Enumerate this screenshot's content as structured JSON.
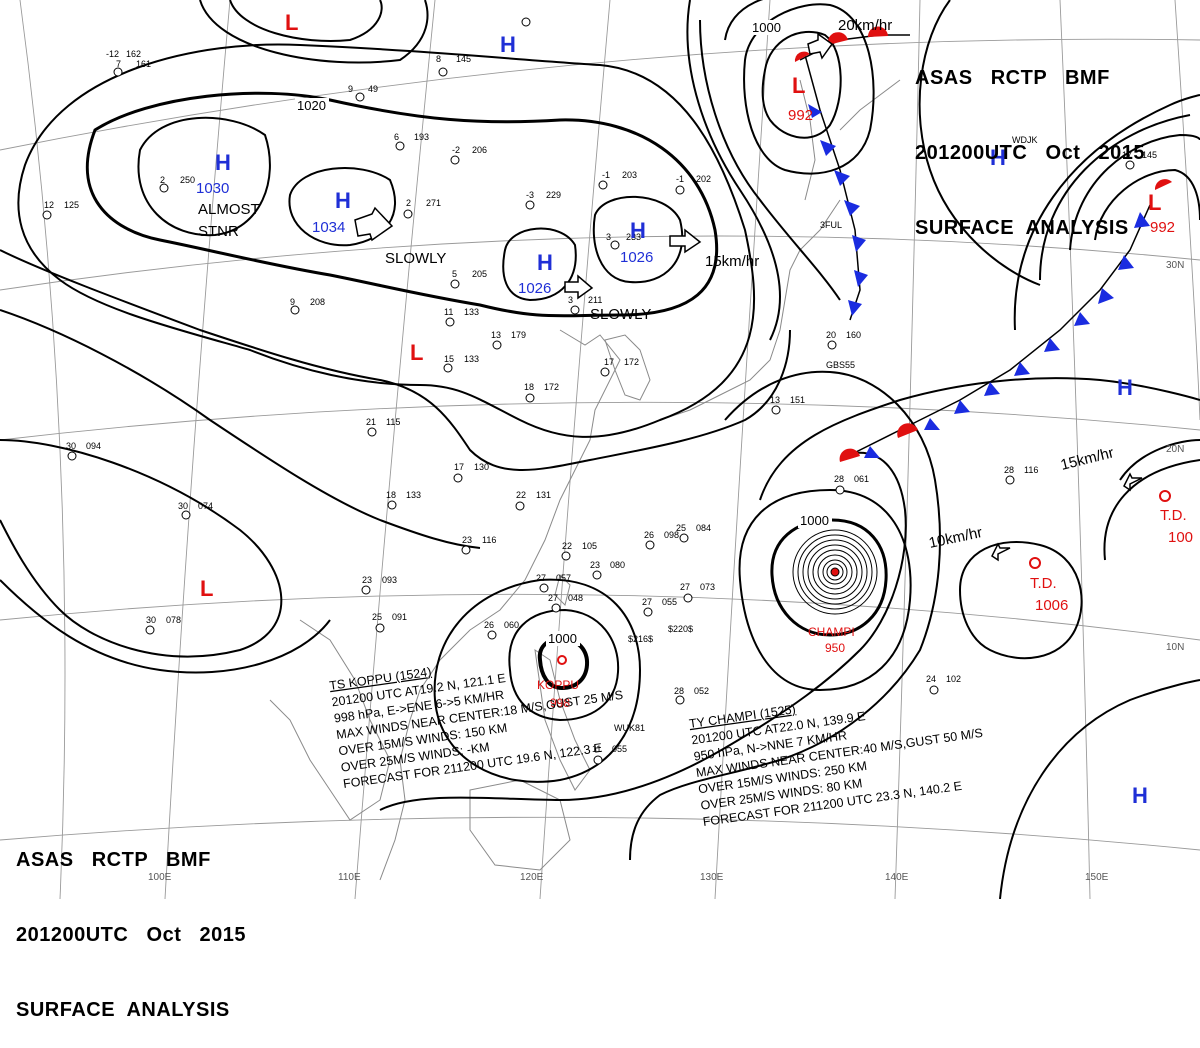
{
  "header": {
    "line1": "ASAS   RCTP   BMF",
    "line2": "201200UTC   Oct   2015",
    "line3": "SURFACE  ANALYSIS"
  },
  "footer": {
    "line1": "ASAS   RCTP   BMF",
    "line2": "201200UTC   Oct   2015",
    "line3": "SURFACE  ANALYSIS"
  },
  "colors": {
    "high": "#1f2fd6",
    "low": "#e01010",
    "cold_front": "#1a2ce0",
    "warm_front": "#e01010",
    "isobar": "#000000",
    "grid": "#9a9a9a",
    "coast": "#8a8a8a"
  },
  "longitude_labels": [
    "100E",
    "110E",
    "120E",
    "130E",
    "140E",
    "150E"
  ],
  "latitude_labels": [
    "30N",
    "20N",
    "10N"
  ],
  "isobar_labels": [
    "1020",
    "1000",
    "1000",
    "1000"
  ],
  "pressure_systems": [
    {
      "type": "H",
      "value": "1030"
    },
    {
      "type": "H",
      "value": "1034"
    },
    {
      "type": "H",
      "value": "1026"
    },
    {
      "type": "H",
      "value": "1026"
    },
    {
      "type": "H",
      "value": ""
    },
    {
      "type": "H",
      "value": ""
    },
    {
      "type": "H",
      "value": ""
    },
    {
      "type": "H",
      "value": ""
    },
    {
      "type": "L",
      "value": "992"
    },
    {
      "type": "L",
      "value": "992"
    },
    {
      "type": "L",
      "value": ""
    },
    {
      "type": "L",
      "value": ""
    },
    {
      "type": "L",
      "value": ""
    }
  ],
  "motion_labels": [
    "ALMOST",
    "STNR",
    "SLOWLY",
    "SLOWLY",
    "15km/hr",
    "20km/hr",
    "15km/hr",
    "10km/hr"
  ],
  "tropical_systems": [
    {
      "name": "CHAMPI",
      "pressure": "950"
    },
    {
      "name": "KOPPU",
      "pressure": "998"
    },
    {
      "name": "T.D.",
      "pressure": "1006"
    },
    {
      "name": "T.D.",
      "pressure": "100"
    }
  ],
  "koppu_bulletin": [
    "TS  KOPPU  (1524)",
    "201200 UTC  AT19.2 N, 121.1 E",
    "998 hPa, E->ENE  6->5 KM/HR",
    "MAX WINDS NEAR CENTER:18 M/S,GUST 25 M/S",
    "OVER 15M/S WINDS: 150 KM",
    "OVER 25M/S WINDS: -KM",
    "FORECAST FOR 211200 UTC 19.6 N, 122.3 E"
  ],
  "champi_bulletin": [
    "TY  CHAMPI  (1525)",
    "201200 UTC  AT22.0 N, 139.9 E",
    "950 hPa, N->NNE  7 KM/HR",
    "MAX WINDS NEAR CENTER:40 M/S,GUST 50 M/S",
    "OVER 15M/S WINDS: 250 KM",
    "OVER 25M/S WINDS: 80 KM",
    "FORECAST FOR 211200 UTC 23.3 N, 140.2 E"
  ],
  "station_plots": [
    {
      "temp": "-12",
      "pressure": "162"
    },
    {
      "temp": "7",
      "pressure": "161"
    },
    {
      "temp": "8",
      "pressure": "145"
    },
    {
      "temp": "9",
      "pressure": "49"
    },
    {
      "temp": "6",
      "pressure": "193"
    },
    {
      "temp": "-2",
      "pressure": "206"
    },
    {
      "temp": "-3",
      "pressure": "229"
    },
    {
      "temp": "-1",
      "pressure": "203"
    },
    {
      "temp": "-1",
      "pressure": "202"
    },
    {
      "temp": "2",
      "pressure": "271"
    },
    {
      "temp": "2",
      "pressure": "250"
    },
    {
      "temp": "12",
      "pressure": "125"
    },
    {
      "temp": "5",
      "pressure": "205"
    },
    {
      "temp": "3",
      "pressure": "233"
    },
    {
      "temp": "3",
      "pressure": "211"
    },
    {
      "temp": "9",
      "pressure": "208"
    },
    {
      "temp": "11",
      "pressure": "133"
    },
    {
      "temp": "13",
      "pressure": "179"
    },
    {
      "temp": "15",
      "pressure": "133"
    },
    {
      "temp": "17",
      "pressure": "172"
    },
    {
      "temp": "18",
      "pressure": "172"
    },
    {
      "temp": "21",
      "pressure": "115"
    },
    {
      "temp": "17",
      "pressure": "130"
    },
    {
      "temp": "18",
      "pressure": "133"
    },
    {
      "temp": "22",
      "pressure": "131"
    },
    {
      "temp": "23",
      "pressure": "116"
    },
    {
      "temp": "22",
      "pressure": "105"
    },
    {
      "temp": "23",
      "pressure": "080"
    },
    {
      "temp": "30",
      "pressure": "094"
    },
    {
      "temp": "30",
      "pressure": "074"
    },
    {
      "temp": "23",
      "pressure": "093"
    },
    {
      "temp": "25",
      "pressure": "091"
    },
    {
      "temp": "30",
      "pressure": "078"
    },
    {
      "temp": "26",
      "pressure": "060"
    },
    {
      "temp": "27",
      "pressure": "057"
    },
    {
      "temp": "27",
      "pressure": "048"
    },
    {
      "temp": "27",
      "pressure": "055"
    },
    {
      "temp": "27",
      "pressure": "073"
    },
    {
      "temp": "25",
      "pressure": "084"
    },
    {
      "temp": "26",
      "pressure": "098"
    },
    {
      "temp": "28",
      "pressure": "061"
    },
    {
      "temp": "28",
      "pressure": "052"
    },
    {
      "temp": "20",
      "pressure": "160"
    },
    {
      "temp": "13",
      "pressure": "151"
    },
    {
      "temp": "11",
      "pressure": "055"
    },
    {
      "temp": "24",
      "pressure": "102"
    },
    {
      "temp": "28",
      "pressure": "116"
    },
    {
      "temp": "17",
      "pressure": "145"
    }
  ],
  "ship_ids": [
    "3FUL",
    "GBS55",
    "WDJK",
    "$216$",
    "$220$",
    "WUK81"
  ]
}
